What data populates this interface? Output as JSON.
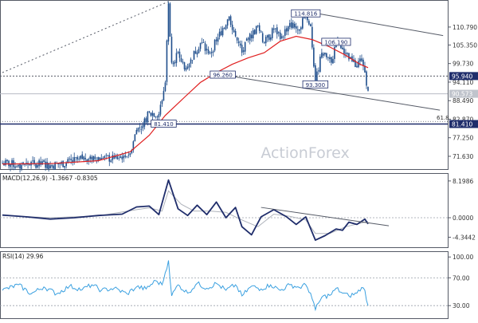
{
  "watermark": "ActionForex",
  "chart_data": [
    {
      "type": "candlestick",
      "panel": "price",
      "ylim": [
        68.0,
        118.5
      ],
      "y_ticks": [
        "110.790",
        "105.350",
        "99.730",
        "94.110",
        "88.490",
        "82.870",
        "77.250",
        "71.630"
      ],
      "price_labels": [
        {
          "text": "95.940",
          "value": 95.94,
          "bg": "#1f2d6b"
        },
        {
          "text": "90.573",
          "value": 90.573,
          "bg": "#c0c4cc"
        },
        {
          "text": "81.410",
          "value": 81.41,
          "bg": "#1f2d6b"
        }
      ],
      "annotations": [
        {
          "text": "114.816",
          "bar": 190,
          "value": 114.816
        },
        {
          "text": "106.190",
          "bar": 209,
          "value": 106.19
        },
        {
          "text": "96.260",
          "bar": 138,
          "value": 96.26
        },
        {
          "text": "93.300",
          "bar": 196,
          "value": 93.3
        },
        {
          "text": "81.410",
          "bar": 101,
          "value": 81.41
        }
      ],
      "fib_label": "61.8",
      "series": [
        {
          "name": "price",
          "color": "#1f4e8c",
          "style": "candles"
        },
        {
          "name": "moving average",
          "color": "#e02020",
          "style": "line"
        }
      ],
      "price_points": [
        [
          0,
          69.6
        ],
        [
          10,
          69.0
        ],
        [
          20,
          69.4
        ],
        [
          30,
          68.9
        ],
        [
          40,
          69.6
        ],
        [
          48,
          70.7
        ],
        [
          55,
          71.6
        ],
        [
          62,
          71.1
        ],
        [
          70,
          70.9
        ],
        [
          76,
          71.8
        ],
        [
          80,
          72.6
        ],
        [
          84,
          79.6
        ],
        [
          88,
          81.0
        ],
        [
          92,
          85.0
        ],
        [
          98,
          84.4
        ],
        [
          102,
          94.0
        ],
        [
          104,
          118.0
        ],
        [
          106,
          100.0
        ],
        [
          110,
          103.0
        ],
        [
          114,
          98.0
        ],
        [
          118,
          101.0
        ],
        [
          124,
          106.0
        ],
        [
          130,
          103.0
        ],
        [
          134,
          106.5
        ],
        [
          138,
          110.5
        ],
        [
          142,
          114.0
        ],
        [
          146,
          108.0
        ],
        [
          150,
          103.0
        ],
        [
          154,
          107.0
        ],
        [
          160,
          111.0
        ],
        [
          164,
          106.0
        ],
        [
          170,
          110.0
        ],
        [
          175,
          108.0
        ],
        [
          180,
          112.0
        ],
        [
          185,
          110.0
        ],
        [
          190,
          114.8
        ],
        [
          193,
          111.0
        ],
        [
          196,
          94.0
        ],
        [
          200,
          103.0
        ],
        [
          206,
          100.0
        ],
        [
          209,
          106.2
        ],
        [
          213,
          104.0
        ],
        [
          217,
          101.0
        ],
        [
          222,
          99.0
        ],
        [
          225,
          100.5
        ],
        [
          227,
          97.0
        ],
        [
          229,
          91.5
        ]
      ],
      "ma_points": [
        [
          0,
          69.3
        ],
        [
          30,
          69.4
        ],
        [
          60,
          70.3
        ],
        [
          80,
          73.0
        ],
        [
          92,
          78.0
        ],
        [
          102,
          84.0
        ],
        [
          114,
          89.5
        ],
        [
          124,
          94.0
        ],
        [
          134,
          97.0
        ],
        [
          144,
          99.5
        ],
        [
          154,
          101.5
        ],
        [
          164,
          103.0
        ],
        [
          174,
          106.5
        ],
        [
          184,
          108.0
        ],
        [
          194,
          107.0
        ],
        [
          204,
          105.0
        ],
        [
          214,
          102.5
        ],
        [
          224,
          99.5
        ],
        [
          229,
          98.5
        ]
      ],
      "channel_upper": [
        [
          190,
          115.5
        ],
        [
          276,
          108.2
        ]
      ],
      "channel_lower": [
        [
          138,
          96.3
        ],
        [
          274,
          85.6
        ]
      ],
      "dotted_line": [
        [
          0,
          97.0
        ],
        [
          104,
          118.5
        ]
      ],
      "level_lines": [
        95.94,
        90.573,
        81.41,
        82.2
      ]
    },
    {
      "type": "line",
      "panel": "macd",
      "title": "MACD(12,26,9) -1.3667 -0.8305",
      "ylim": [
        -6.4,
        9.6
      ],
      "y_ticks": [
        "8.1986",
        "0.0000",
        "-4.3442"
      ],
      "series": [
        {
          "name": "MACD",
          "color": "#1f2d6b"
        },
        {
          "name": "Signal",
          "color": "#b0b4bc"
        }
      ],
      "macd_points": [
        [
          0,
          0.6
        ],
        [
          15,
          0.2
        ],
        [
          30,
          -0.3
        ],
        [
          45,
          0.0
        ],
        [
          60,
          0.5
        ],
        [
          75,
          0.8
        ],
        [
          84,
          2.4
        ],
        [
          92,
          2.6
        ],
        [
          98,
          0.7
        ],
        [
          104,
          8.4
        ],
        [
          110,
          2.0
        ],
        [
          116,
          0.5
        ],
        [
          122,
          2.8
        ],
        [
          128,
          0.7
        ],
        [
          134,
          3.5
        ],
        [
          140,
          0.0
        ],
        [
          146,
          2.3
        ],
        [
          150,
          -2.0
        ],
        [
          156,
          -3.8
        ],
        [
          162,
          0.2
        ],
        [
          170,
          1.8
        ],
        [
          178,
          0.2
        ],
        [
          184,
          -1.5
        ],
        [
          190,
          0.2
        ],
        [
          196,
          -5.0
        ],
        [
          202,
          -4.0
        ],
        [
          209,
          -2.5
        ],
        [
          213,
          -2.8
        ],
        [
          217,
          -1.0
        ],
        [
          222,
          -1.5
        ],
        [
          227,
          -0.3
        ],
        [
          229,
          -1.37
        ]
      ],
      "signal_points": [
        [
          0,
          0.5
        ],
        [
          30,
          0.0
        ],
        [
          60,
          0.4
        ],
        [
          84,
          1.8
        ],
        [
          92,
          2.2
        ],
        [
          100,
          1.5
        ],
        [
          104,
          6.0
        ],
        [
          112,
          3.0
        ],
        [
          120,
          1.5
        ],
        [
          130,
          1.5
        ],
        [
          140,
          1.2
        ],
        [
          150,
          -0.5
        ],
        [
          160,
          -2.0
        ],
        [
          170,
          0.8
        ],
        [
          180,
          0.3
        ],
        [
          190,
          -0.5
        ],
        [
          196,
          -3.5
        ],
        [
          205,
          -3.5
        ],
        [
          215,
          -2.0
        ],
        [
          229,
          -0.83
        ]
      ],
      "trend_line": [
        [
          162,
          2.3
        ],
        [
          242,
          -1.8
        ]
      ]
    },
    {
      "type": "line",
      "panel": "rsi",
      "title": "RSI(14) 29.96",
      "ylim": [
        13,
        106
      ],
      "y_ticks": [
        "100.00",
        "70.00",
        "30.00"
      ],
      "series": [
        {
          "name": "RSI",
          "color": "#3aa0e0"
        }
      ],
      "rsi_points": [
        [
          0,
          52
        ],
        [
          10,
          60
        ],
        [
          18,
          47
        ],
        [
          26,
          57
        ],
        [
          34,
          47
        ],
        [
          42,
          58
        ],
        [
          50,
          53
        ],
        [
          56,
          60
        ],
        [
          62,
          52
        ],
        [
          70,
          55
        ],
        [
          78,
          47
        ],
        [
          84,
          57
        ],
        [
          90,
          54
        ],
        [
          96,
          66
        ],
        [
          100,
          60
        ],
        [
          104,
          95
        ],
        [
          106,
          44
        ],
        [
          110,
          60
        ],
        [
          116,
          48
        ],
        [
          122,
          62
        ],
        [
          128,
          55
        ],
        [
          134,
          62
        ],
        [
          140,
          52
        ],
        [
          146,
          60
        ],
        [
          150,
          44
        ],
        [
          156,
          58
        ],
        [
          162,
          54
        ],
        [
          168,
          60
        ],
        [
          174,
          52
        ],
        [
          180,
          60
        ],
        [
          186,
          56
        ],
        [
          190,
          60
        ],
        [
          193,
          48
        ],
        [
          196,
          24
        ],
        [
          200,
          42
        ],
        [
          206,
          46
        ],
        [
          209,
          55
        ],
        [
          213,
          48
        ],
        [
          217,
          44
        ],
        [
          222,
          48
        ],
        [
          225,
          56
        ],
        [
          227,
          52
        ],
        [
          229,
          29.96
        ]
      ]
    }
  ]
}
